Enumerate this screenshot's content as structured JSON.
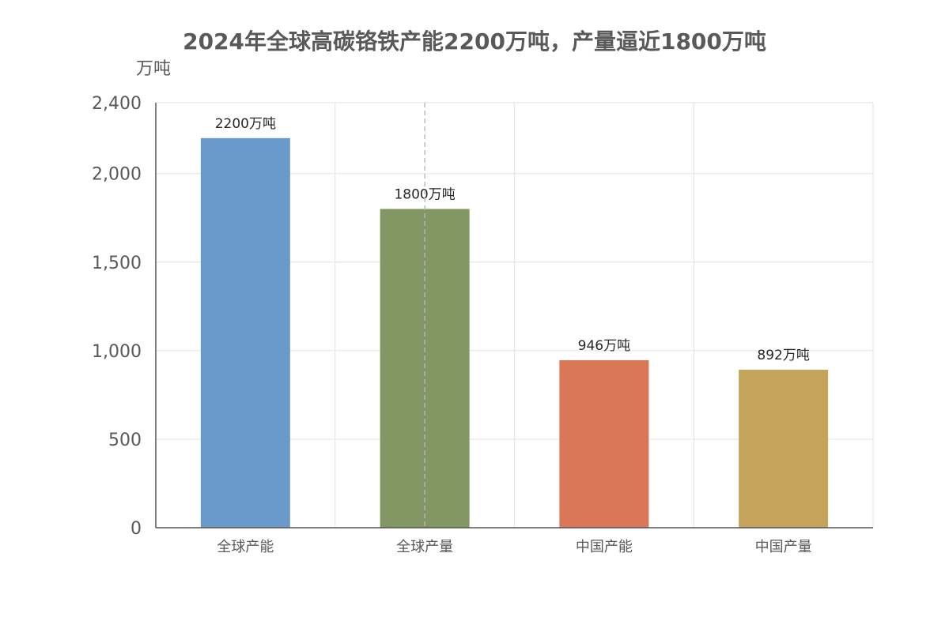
{
  "chart_data": {
    "type": "bar",
    "title": "2024年全球高碳铬铁产能2200万吨，产量逼近1800万吨",
    "ylabel": "万吨",
    "xlabel": "",
    "categories": [
      "全球产能",
      "全球产量",
      "中国产能",
      "中国产量"
    ],
    "values": [
      2200,
      1800,
      946,
      892
    ],
    "data_labels": [
      "2200万吨",
      "1800万吨",
      "946万吨",
      "892万吨"
    ],
    "bar_colors": [
      "#6a9acc",
      "#829763",
      "#d97757",
      "#c4a35a"
    ],
    "ylim": [
      0,
      2400
    ],
    "y_ticks": [
      0,
      500,
      1000,
      1500,
      2000,
      2400
    ],
    "y_tick_labels": [
      "0",
      "500",
      "1,000",
      "1,500",
      "2,000",
      "2,400"
    ],
    "grid": true,
    "legend": "none"
  }
}
